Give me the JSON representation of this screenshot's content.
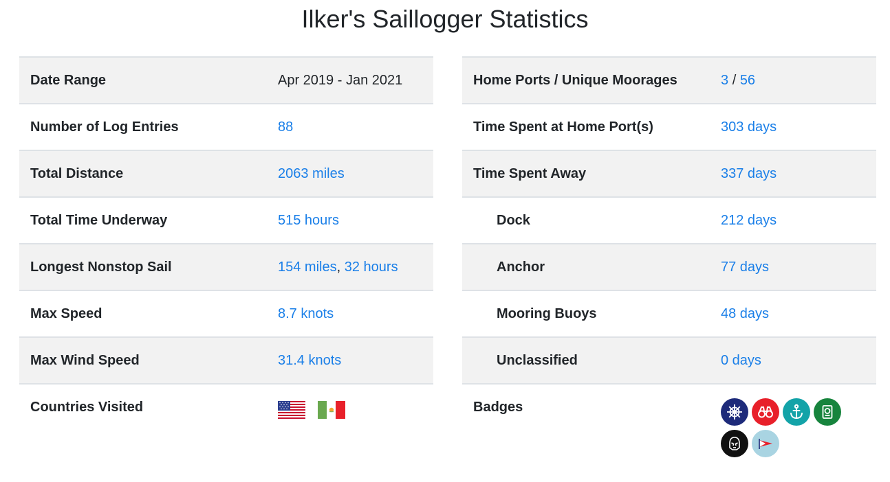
{
  "title": "Ilker's Saillogger Statistics",
  "left": {
    "date_range": {
      "label": "Date Range",
      "value": "Apr 2019 - Jan 2021"
    },
    "log_entries": {
      "label": "Number of Log Entries",
      "value": "88"
    },
    "total_distance": {
      "label": "Total Distance",
      "value": "2063 miles"
    },
    "total_time": {
      "label": "Total Time Underway",
      "value": "515 hours"
    },
    "longest_sail": {
      "label": "Longest Nonstop Sail",
      "distance": "154 miles",
      "separator": ",",
      "duration": "32 hours"
    },
    "max_speed": {
      "label": "Max Speed",
      "value": "8.7 knots"
    },
    "max_wind": {
      "label": "Max Wind Speed",
      "value": "31.4 knots"
    },
    "countries": {
      "label": "Countries Visited",
      "flags": [
        "us-flag-icon",
        "mx-flag-icon"
      ]
    }
  },
  "right": {
    "home_ports": {
      "label": "Home Ports / Unique Moorages",
      "home": "3",
      "separator": "/",
      "unique": "56"
    },
    "time_home": {
      "label": "Time Spent at Home Port(s)",
      "value": "303 days"
    },
    "time_away": {
      "label": "Time Spent Away",
      "value": "337 days"
    },
    "dock": {
      "label": "Dock",
      "value": "212 days"
    },
    "anchor": {
      "label": "Anchor",
      "value": "77 days"
    },
    "mooring": {
      "label": "Mooring Buoys",
      "value": "48 days"
    },
    "unclassified": {
      "label": "Unclassified",
      "value": "0 days"
    },
    "badges": {
      "label": "Badges",
      "items": [
        {
          "icon": "ship-wheel-icon",
          "color": "#1d2a7a"
        },
        {
          "icon": "binoculars-icon",
          "color": "#e8202a"
        },
        {
          "icon": "anchor-icon",
          "color": "#13a3a8"
        },
        {
          "icon": "passport-icon",
          "color": "#17843d"
        },
        {
          "icon": "stormtrooper-icon",
          "color": "#111111"
        },
        {
          "icon": "burgee-flag-icon",
          "color": "#a9d4e2"
        }
      ]
    }
  }
}
